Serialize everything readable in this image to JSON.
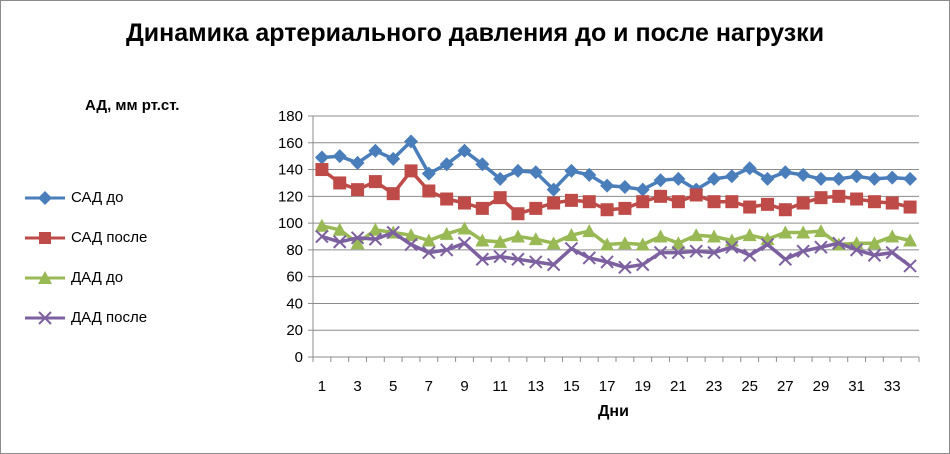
{
  "chart_data": {
    "type": "line",
    "title": "Динамика артериального давления до и после нагрузки",
    "ylabel": "АД, мм рт.ст.",
    "xlabel": "Дни",
    "ylim": [
      0,
      180
    ],
    "yticks": [
      0,
      20,
      40,
      60,
      80,
      100,
      120,
      140,
      160,
      180
    ],
    "x": [
      1,
      2,
      3,
      4,
      5,
      6,
      7,
      8,
      9,
      10,
      11,
      12,
      13,
      14,
      15,
      16,
      17,
      18,
      19,
      20,
      21,
      22,
      23,
      24,
      25,
      26,
      27,
      28,
      29,
      30,
      31,
      32,
      33,
      34
    ],
    "xtick_labels": [
      1,
      3,
      5,
      7,
      9,
      11,
      13,
      15,
      17,
      19,
      21,
      23,
      25,
      27,
      29,
      31,
      33
    ],
    "grid": true,
    "legend_position": "left",
    "series": [
      {
        "name": "САД до",
        "color": "#4a7ebb",
        "marker": "diamond",
        "values": [
          149,
          150,
          145,
          154,
          148,
          161,
          137,
          144,
          154,
          144,
          133,
          139,
          138,
          125,
          139,
          136,
          128,
          127,
          125,
          132,
          133,
          125,
          133,
          135,
          141,
          133,
          138,
          136,
          133,
          133,
          135,
          133,
          134,
          133
        ]
      },
      {
        "name": "САД после",
        "color": "#be4b48",
        "marker": "square",
        "values": [
          140,
          130,
          125,
          131,
          122,
          139,
          124,
          118,
          115,
          111,
          119,
          107,
          111,
          115,
          117,
          116,
          110,
          111,
          116,
          120,
          116,
          121,
          116,
          116,
          112,
          114,
          110,
          115,
          119,
          120,
          118,
          116,
          115,
          112
        ]
      },
      {
        "name": "ДАД до",
        "color": "#98b954",
        "marker": "triangle",
        "values": [
          98,
          95,
          85,
          95,
          93,
          91,
          87,
          92,
          96,
          87,
          86,
          90,
          88,
          85,
          91,
          94,
          84,
          85,
          84,
          90,
          85,
          91,
          90,
          87,
          91,
          88,
          93,
          93,
          94,
          84,
          85,
          85,
          90,
          87
        ]
      },
      {
        "name": "ДАД после",
        "color": "#7d60a0",
        "marker": "x",
        "values": [
          90,
          86,
          89,
          88,
          93,
          84,
          78,
          80,
          85,
          73,
          75,
          73,
          71,
          69,
          81,
          74,
          71,
          67,
          69,
          78,
          78,
          79,
          78,
          82,
          76,
          84,
          73,
          79,
          82,
          85,
          80,
          76,
          78,
          68
        ]
      }
    ]
  }
}
